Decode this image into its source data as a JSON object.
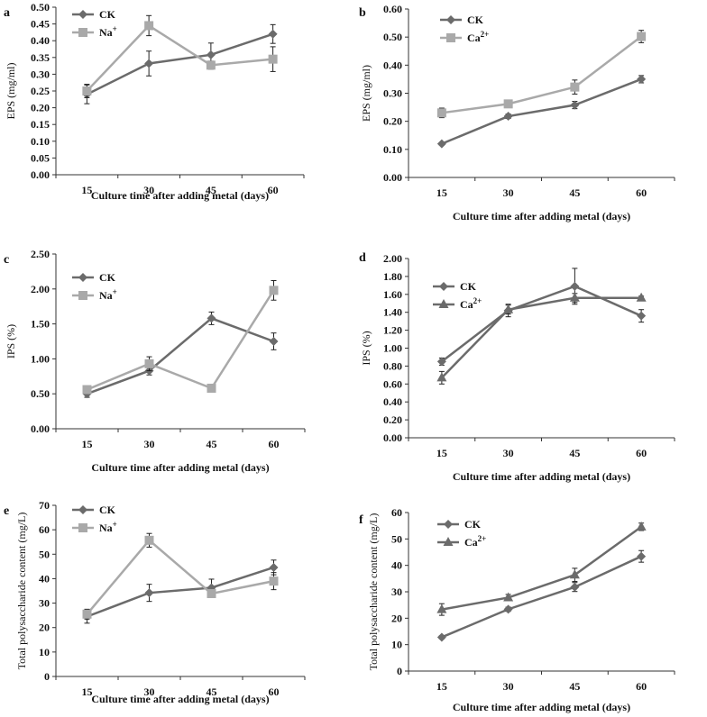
{
  "colors": {
    "ck": "#6b6b6b",
    "treat": "#a9a9a9",
    "axis": "#333333",
    "text": "#111111"
  },
  "chart_data": [
    {
      "id": "a",
      "panel_label": "a",
      "type": "line",
      "categories": [
        "15",
        "30",
        "45",
        "60"
      ],
      "ylabel": "EPS (mg/ml)",
      "xlabel": "Culture time after adding metal (days)",
      "ylim": [
        0,
        0.5
      ],
      "yticks": [
        "0.00",
        "0.05",
        "0.10",
        "0.15",
        "0.20",
        "0.25",
        "0.30",
        "0.35",
        "0.40",
        "0.45",
        "0.50"
      ],
      "series": [
        {
          "name": "CK",
          "sup": "",
          "marker": "diamond",
          "color_key": "ck",
          "values": [
            0.24,
            0.332,
            0.358,
            0.42
          ],
          "errors": [
            0.028,
            0.037,
            0.035,
            0.028
          ]
        },
        {
          "name": "Na",
          "sup": "+",
          "marker": "square",
          "color_key": "treat",
          "values": [
            0.25,
            0.445,
            0.327,
            0.345
          ],
          "errors": [
            0.02,
            0.03,
            0.012,
            0.037
          ]
        }
      ]
    },
    {
      "id": "b",
      "panel_label": "b",
      "type": "line",
      "categories": [
        "15",
        "30",
        "45",
        "60"
      ],
      "ylabel": "EPS (mg/ml)",
      "xlabel": "Culture time after adding metal (days)",
      "ylim": [
        0,
        0.6
      ],
      "yticks": [
        "0.00",
        "0.10",
        "0.20",
        "0.30",
        "0.40",
        "0.50",
        "0.60"
      ],
      "series": [
        {
          "name": "CK",
          "sup": "",
          "marker": "diamond",
          "color_key": "ck",
          "values": [
            0.12,
            0.218,
            0.258,
            0.35
          ],
          "errors": [
            0.005,
            0.008,
            0.013,
            0.013
          ]
        },
        {
          "name": "Ca",
          "sup": "2+",
          "marker": "square",
          "color_key": "treat",
          "values": [
            0.23,
            0.262,
            0.322,
            0.502
          ],
          "errors": [
            0.017,
            0.008,
            0.025,
            0.022
          ]
        }
      ]
    },
    {
      "id": "c",
      "panel_label": "c",
      "type": "line",
      "categories": [
        "15",
        "30",
        "45",
        "60"
      ],
      "ylabel": "IPS (%)",
      "xlabel": "Culture time after adding metal (days)",
      "ylim": [
        0,
        2.5
      ],
      "yticks": [
        "0.00",
        "0.50",
        "1.00",
        "1.50",
        "2.00",
        "2.50"
      ],
      "series": [
        {
          "name": "CK",
          "sup": "",
          "marker": "diamond",
          "color_key": "ck",
          "values": [
            0.5,
            0.83,
            1.58,
            1.25
          ],
          "errors": [
            0.05,
            0.06,
            0.09,
            0.12
          ]
        },
        {
          "name": "Na",
          "sup": "+",
          "marker": "square",
          "color_key": "treat",
          "values": [
            0.56,
            0.93,
            0.58,
            1.98
          ],
          "errors": [
            0.03,
            0.1,
            0.02,
            0.14
          ]
        }
      ]
    },
    {
      "id": "d",
      "panel_label": "d",
      "type": "line",
      "categories": [
        "15",
        "30",
        "45",
        "60"
      ],
      "ylabel": "IPS (%)",
      "xlabel": "Culture time after adding metal (days)",
      "ylim": [
        0,
        2.0
      ],
      "yticks": [
        "0.00",
        "0.20",
        "0.40",
        "0.60",
        "0.80",
        "1.00",
        "1.20",
        "1.40",
        "1.60",
        "1.80",
        "2.00"
      ],
      "series": [
        {
          "name": "CK",
          "sup": "",
          "marker": "diamond",
          "color_key": "ck",
          "values": [
            0.85,
            1.42,
            1.69,
            1.36
          ],
          "errors": [
            0.04,
            0.07,
            0.2,
            0.07
          ]
        },
        {
          "name": "Ca",
          "sup": "2+",
          "marker": "triangle",
          "color_key": "ck",
          "values": [
            0.67,
            1.43,
            1.56,
            1.56
          ],
          "errors": [
            0.07,
            0.05,
            0.05,
            0.02
          ]
        }
      ]
    },
    {
      "id": "e",
      "panel_label": "e",
      "type": "line",
      "categories": [
        "15",
        "30",
        "45",
        "60"
      ],
      "ylabel": "Total polysaccharide content (mg/L)",
      "xlabel": "Culture time after adding metal (days)",
      "ylim": [
        0,
        70
      ],
      "yticks": [
        "0",
        "10",
        "20",
        "30",
        "40",
        "50",
        "60",
        "70"
      ],
      "series": [
        {
          "name": "CK",
          "sup": "",
          "marker": "diamond",
          "color_key": "ck",
          "values": [
            24.5,
            34.2,
            36.3,
            44.6
          ],
          "errors": [
            2.7,
            3.5,
            3.5,
            3.0
          ]
        },
        {
          "name": "Na",
          "sup": "+",
          "marker": "square",
          "color_key": "treat",
          "values": [
            25.5,
            55.7,
            33.9,
            39.0
          ],
          "errors": [
            2.0,
            2.8,
            1.2,
            3.5
          ]
        }
      ]
    },
    {
      "id": "f",
      "panel_label": "f",
      "type": "line",
      "categories": [
        "15",
        "30",
        "45",
        "60"
      ],
      "ylabel": "Total polysaccharide content (mg/L)",
      "xlabel": "Culture time after adding metal (days)",
      "ylim": [
        0,
        60
      ],
      "yticks": [
        "0",
        "10",
        "20",
        "30",
        "40",
        "50",
        "60"
      ],
      "series": [
        {
          "name": "CK",
          "sup": "",
          "marker": "diamond",
          "color_key": "ck",
          "values": [
            12.8,
            23.4,
            31.8,
            43.4
          ],
          "errors": [
            0.6,
            0.8,
            1.7,
            2.2
          ]
        },
        {
          "name": "Ca",
          "sup": "2+",
          "marker": "triangle",
          "color_key": "ck",
          "values": [
            23.3,
            27.8,
            36.4,
            54.6
          ],
          "errors": [
            2.2,
            1.2,
            2.5,
            1.4
          ]
        }
      ]
    }
  ]
}
